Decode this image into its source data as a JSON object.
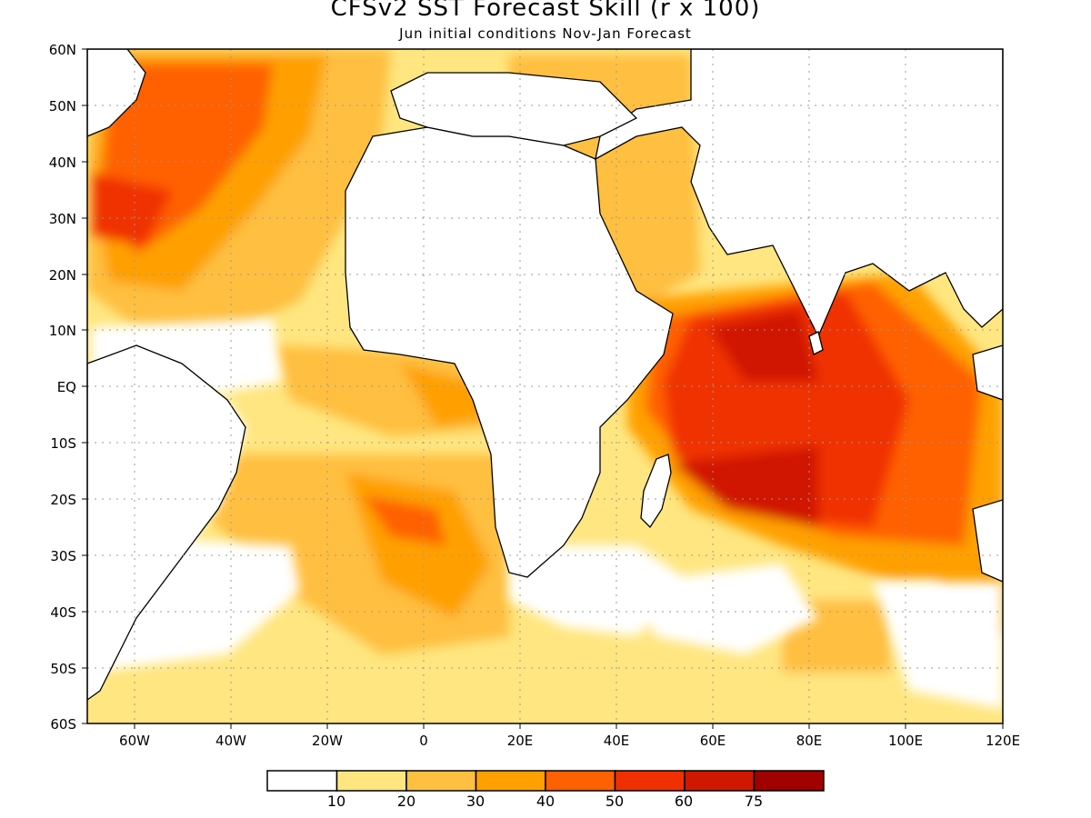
{
  "title": "CFSv2 SST Forecast Skill (r x 100)",
  "subtitle": "Jun initial conditions  Nov-Jan Forecast",
  "axes": {
    "x_ticks": [
      "60W",
      "40W",
      "20W",
      "0",
      "20E",
      "40E",
      "60E",
      "80E",
      "100E",
      "120E"
    ],
    "y_ticks": [
      "60N",
      "50N",
      "40N",
      "30N",
      "20N",
      "10N",
      "EQ",
      "10S",
      "20S",
      "30S",
      "40S",
      "50S",
      "60S"
    ]
  },
  "colorbar": {
    "colors": [
      "#ffffff",
      "#ffe680",
      "#ffbf40",
      "#ffa000",
      "#ff6000",
      "#f03000",
      "#d01800",
      "#a00000"
    ],
    "labels": [
      "10",
      "20",
      "30",
      "40",
      "50",
      "60",
      "75"
    ]
  },
  "colors": {
    "land": "#ffffff",
    "coast": "#000000"
  }
}
